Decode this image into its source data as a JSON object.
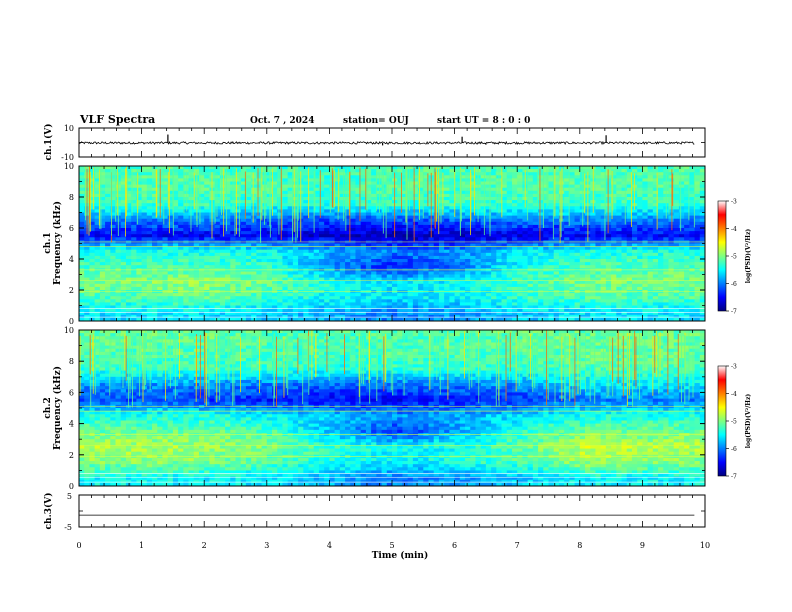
{
  "header": {
    "title": "VLF Spectra",
    "date": "Oct. 7 , 2024",
    "station": "station= OUJ",
    "start": "start  UT =  8 : 0 : 0"
  },
  "panels": {
    "ch1_wave_label": "ch.1(V)",
    "ch1_wave_ticks": [
      "10",
      "-10"
    ],
    "ch1_spec_label_a": "ch.1",
    "ch1_spec_label_b": "Frequency  (kHz)",
    "ch2_spec_label_a": "ch.2",
    "ch2_spec_label_b": "Frequency  (kHz)",
    "ch3_wave_label": "ch.3(V)",
    "ch3_wave_ticks": [
      "5",
      "-5"
    ],
    "freq_ticks": [
      "0",
      "2",
      "4",
      "6",
      "8",
      "10"
    ],
    "colorbar_label": "log(PSD)(V²/Hz)",
    "colorbar_ticks": [
      "-3",
      "-4",
      "-5",
      "-6",
      "-7"
    ]
  },
  "xaxis": {
    "label": "Time  (min)",
    "ticks": [
      "0",
      "1",
      "2",
      "3",
      "4",
      "5",
      "6",
      "7",
      "8",
      "9",
      "10"
    ]
  },
  "chart_data": [
    {
      "type": "line",
      "name": "ch1-waveform",
      "ylabel": "ch.1(V)",
      "xlim": [
        0,
        10
      ],
      "ylim": [
        -10,
        10
      ],
      "x": [
        0,
        1,
        1.42,
        2,
        3,
        4,
        4.85,
        6.12,
        6.5,
        7,
        8,
        8.42,
        9.83
      ],
      "y": [
        -0.3,
        -0.3,
        5.5,
        -0.2,
        -0.3,
        -0.3,
        -2.0,
        4.0,
        -1.5,
        -0.3,
        -0.3,
        5.0,
        -0.3
      ]
    },
    {
      "type": "heatmap",
      "name": "ch1-spectrogram",
      "xlabel": "Time  (min)",
      "ylabel": "Frequency  (kHz)",
      "xlim": [
        0,
        10
      ],
      "ylim": [
        0,
        10
      ],
      "time_min": [
        0,
        1,
        2,
        3,
        4,
        5,
        6,
        7,
        8,
        9,
        9.83
      ],
      "freq_khz": [
        0.5,
        1.5,
        2.5,
        3.5,
        4.5,
        5.5,
        6.5,
        7.5,
        8.5,
        9.5
      ],
      "log_psd": [
        [
          -5.6,
          -5.2,
          -5.0,
          -5.2,
          -5.4,
          -6.5,
          -6.0,
          -5.3,
          -5.2,
          -5.2
        ],
        [
          -5.6,
          -5.2,
          -5.0,
          -5.2,
          -5.4,
          -6.5,
          -6.0,
          -5.3,
          -5.2,
          -5.2
        ],
        [
          -5.6,
          -5.1,
          -4.9,
          -5.2,
          -5.4,
          -6.5,
          -6.0,
          -5.3,
          -5.2,
          -5.2
        ],
        [
          -5.7,
          -5.3,
          -5.1,
          -5.3,
          -5.5,
          -6.6,
          -6.1,
          -5.4,
          -5.2,
          -5.3
        ],
        [
          -5.8,
          -5.5,
          -5.4,
          -6.0,
          -5.8,
          -6.7,
          -6.2,
          -5.4,
          -5.3,
          -5.3
        ],
        [
          -6.0,
          -5.6,
          -5.6,
          -6.4,
          -6.0,
          -6.8,
          -6.2,
          -5.3,
          -5.2,
          -5.2
        ],
        [
          -5.9,
          -5.5,
          -5.5,
          -6.0,
          -5.9,
          -6.7,
          -6.1,
          -5.3,
          -5.2,
          -5.2
        ],
        [
          -5.7,
          -5.3,
          -5.2,
          -5.4,
          -5.6,
          -6.6,
          -6.0,
          -5.3,
          -5.2,
          -5.2
        ],
        [
          -5.6,
          -5.2,
          -5.0,
          -5.2,
          -5.4,
          -6.5,
          -6.0,
          -5.3,
          -5.2,
          -5.2
        ],
        [
          -5.6,
          -5.2,
          -5.0,
          -5.2,
          -5.4,
          -6.5,
          -6.0,
          -5.3,
          -5.2,
          -5.2
        ],
        [
          -5.6,
          -5.2,
          -5.0,
          -5.2,
          -5.4,
          -6.5,
          -6.0,
          -5.3,
          -5.2,
          -5.2
        ]
      ],
      "colorbar_range": [
        -7,
        -3
      ]
    },
    {
      "type": "heatmap",
      "name": "ch2-spectrogram",
      "xlabel": "Time  (min)",
      "ylabel": "Frequency  (kHz)",
      "xlim": [
        0,
        10
      ],
      "ylim": [
        0,
        10
      ],
      "time_min": [
        0,
        1,
        2,
        3,
        4,
        5,
        6,
        7,
        8,
        9,
        9.83
      ],
      "freq_khz": [
        0.5,
        1.5,
        2.5,
        3.5,
        4.5,
        5.5,
        6.5,
        7.5,
        8.5,
        9.5
      ],
      "log_psd": [
        [
          -5.5,
          -5.0,
          -4.8,
          -5.1,
          -5.4,
          -6.2,
          -5.9,
          -5.3,
          -5.2,
          -5.1
        ],
        [
          -5.5,
          -5.0,
          -4.8,
          -5.1,
          -5.4,
          -6.2,
          -5.9,
          -5.3,
          -5.2,
          -5.1
        ],
        [
          -5.5,
          -5.0,
          -4.9,
          -5.1,
          -5.4,
          -6.3,
          -5.9,
          -5.3,
          -5.2,
          -5.1
        ],
        [
          -5.6,
          -5.2,
          -5.0,
          -5.2,
          -5.5,
          -6.4,
          -6.0,
          -5.3,
          -5.2,
          -5.2
        ],
        [
          -5.8,
          -5.4,
          -5.3,
          -5.8,
          -5.7,
          -6.5,
          -6.1,
          -5.4,
          -5.3,
          -5.2
        ],
        [
          -6.0,
          -5.6,
          -5.5,
          -6.3,
          -5.9,
          -6.5,
          -6.1,
          -5.3,
          -5.2,
          -5.2
        ],
        [
          -5.9,
          -5.4,
          -5.4,
          -5.8,
          -5.8,
          -6.4,
          -6.0,
          -5.3,
          -5.2,
          -5.2
        ],
        [
          -5.7,
          -5.2,
          -5.1,
          -5.3,
          -5.6,
          -6.3,
          -5.9,
          -5.3,
          -5.2,
          -5.1
        ],
        [
          -5.5,
          -4.9,
          -4.7,
          -5.1,
          -5.4,
          -6.0,
          -5.6,
          -5.2,
          -5.1,
          -5.1
        ],
        [
          -5.5,
          -5.0,
          -4.8,
          -5.1,
          -5.4,
          -6.0,
          -5.6,
          -5.2,
          -5.1,
          -5.1
        ],
        [
          -5.5,
          -5.0,
          -4.8,
          -5.1,
          -5.4,
          -6.0,
          -5.6,
          -5.2,
          -5.1,
          -5.1
        ]
      ],
      "colorbar_range": [
        -7,
        -3
      ]
    },
    {
      "type": "line",
      "name": "ch3-waveform",
      "ylabel": "ch.3(V)",
      "xlim": [
        0,
        10
      ],
      "ylim": [
        -5,
        5
      ],
      "x": [
        0,
        9.83
      ],
      "y": [
        -1.3,
        -1.3
      ]
    }
  ]
}
